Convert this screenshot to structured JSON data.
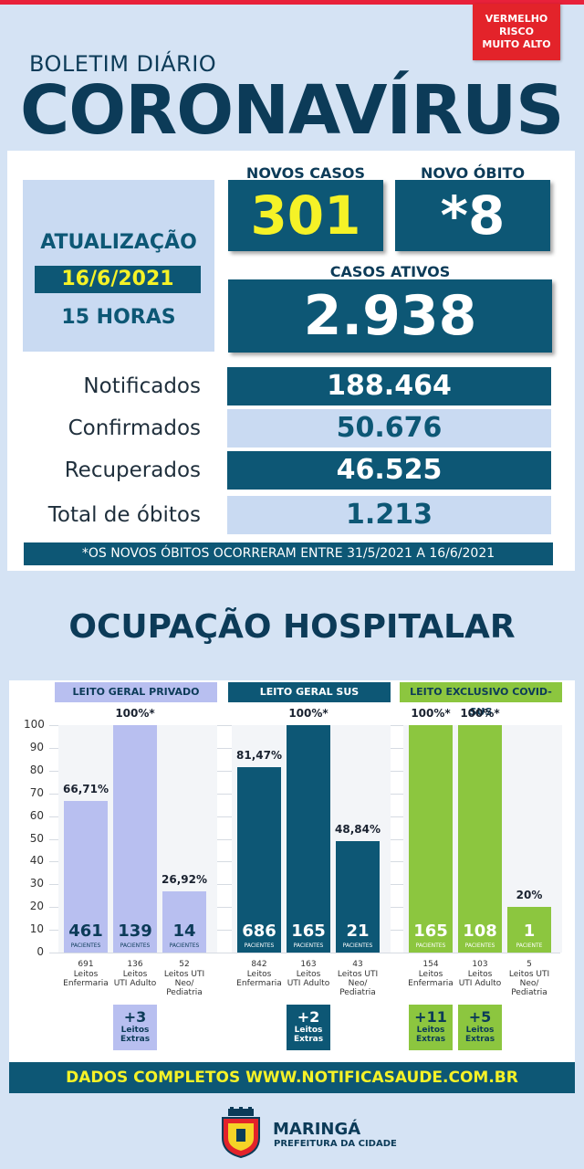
{
  "header": {
    "risk_lines": [
      "VERMELHO",
      "RISCO",
      "MUITO ALTO"
    ],
    "subtitle": "BOLETIM DIÁRIO",
    "title": "CORONAVÍRUS"
  },
  "update": {
    "title": "ATUALIZAÇÃO",
    "date": "16/6/2021",
    "hour": "15 HORAS"
  },
  "highlights": {
    "new_cases_label": "NOVOS CASOS",
    "new_cases_value": "301",
    "new_death_label": "NOVO ÓBITO",
    "new_death_value": "*8",
    "active_label": "CASOS ATIVOS",
    "active_value": "2.938"
  },
  "stats": [
    {
      "label": "Notificados",
      "value": "188.464"
    },
    {
      "label": "Confirmados",
      "value": "50.676"
    },
    {
      "label": "Recuperados",
      "value": "46.525"
    },
    {
      "label": "Total de óbitos",
      "value": "1.213"
    }
  ],
  "note": "*OS NOVOS ÓBITOS OCORRERAM ENTRE 31/5/2021 A 16/6/2021",
  "occupancy_title": "OCUPAÇÃO HOSPITALAR",
  "colors": {
    "dark_blue": "#0d5775",
    "light_blue": "#c9daf2",
    "periwinkle": "#b8bff0",
    "lime": "#8cc63f",
    "yellow": "#f5f227",
    "red": "#e3232a"
  },
  "chart_data": {
    "type": "bar",
    "ylim": [
      0,
      100
    ],
    "yticks": [
      "0",
      "10",
      "20",
      "30",
      "40",
      "50",
      "60",
      "70",
      "80",
      "90",
      "100"
    ],
    "groups": [
      {
        "name": "LEITO GERAL PRIVADO",
        "color": "#b8bff0",
        "bars": [
          {
            "value": 66.71,
            "label": "66,71%",
            "patients": "461",
            "beds": "691",
            "type_lines": [
              "Leitos",
              "Enfermaria"
            ]
          },
          {
            "value": 100,
            "label": "100%*",
            "patients": "139",
            "beds": "136",
            "type_lines": [
              "Leitos",
              "UTI Adulto"
            ]
          },
          {
            "value": 26.92,
            "label": "26,92%",
            "patients": "14",
            "beds": "52",
            "type_lines": [
              "Leitos UTI",
              "Neo/",
              "Pediatria"
            ]
          }
        ],
        "extras": [
          {
            "value": "+3",
            "lines": [
              "Leitos",
              "Extras"
            ]
          }
        ]
      },
      {
        "name": "LEITO GERAL SUS",
        "color": "#0d5775",
        "bars": [
          {
            "value": 81.47,
            "label": "81,47%",
            "patients": "686",
            "beds": "842",
            "type_lines": [
              "Leitos",
              "Enfermaria"
            ]
          },
          {
            "value": 100,
            "label": "100%*",
            "patients": "165",
            "beds": "163",
            "type_lines": [
              "Leitos",
              "UTI Adulto"
            ]
          },
          {
            "value": 48.84,
            "label": "48,84%",
            "patients": "21",
            "beds": "43",
            "type_lines": [
              "Leitos UTI",
              "Neo/",
              "Pediatria"
            ]
          }
        ],
        "extras": [
          {
            "value": "+2",
            "lines": [
              "Leitos",
              "Extras"
            ]
          }
        ]
      },
      {
        "name": "LEITO EXCLUSIVO COVID-SUS",
        "color": "#8cc63f",
        "bars": [
          {
            "value": 100,
            "label": "100%*",
            "patients": "165",
            "beds": "154",
            "type_lines": [
              "Leitos",
              "Enfermaria"
            ]
          },
          {
            "value": 100,
            "label": "100%*",
            "patients": "108",
            "beds": "103",
            "type_lines": [
              "Leitos",
              "UTI Adulto"
            ]
          },
          {
            "value": 20,
            "label": "20%",
            "patients": "1",
            "beds": "5",
            "type_lines": [
              "Leitos UTI",
              "Neo/",
              "Pediatria"
            ]
          }
        ],
        "extras": [
          {
            "value": "+11",
            "lines": [
              "Leitos",
              "Extras"
            ]
          },
          {
            "value": "+5",
            "lines": [
              "Leitos",
              "Extras"
            ]
          }
        ]
      }
    ],
    "patients_word": "PACIENTES",
    "patient_word_single": "PACIENTE"
  },
  "footer": "DADOS COMPLETOS  WWW.NOTIFICASAUDE.COM.BR",
  "brand": {
    "city": "MARINGÁ",
    "sub": "PREFEITURA DA CIDADE"
  }
}
